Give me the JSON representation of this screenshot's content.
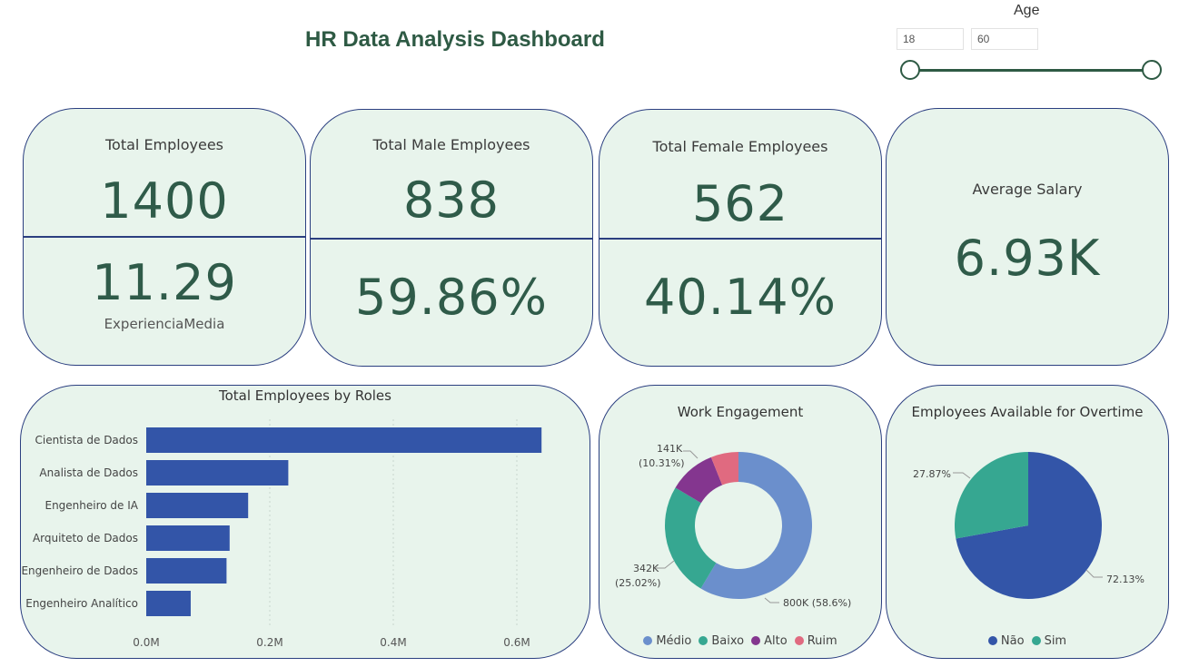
{
  "header": {
    "title": "HR Data Analysis Dashboard"
  },
  "age_filter": {
    "label": "Age",
    "min_value": "18",
    "max_value": "60"
  },
  "cards": {
    "total_employees": {
      "label": "Total Employees",
      "value": "1400",
      "secondary_value": "11.29",
      "secondary_label": "ExperienciaMedia"
    },
    "male": {
      "label": "Total Male Employees",
      "value": "838",
      "secondary_value": "59.86%"
    },
    "female": {
      "label": "Total Female Employees",
      "value": "562",
      "secondary_value": "40.14%"
    },
    "salary": {
      "label": "Average Salary",
      "value": "6.93K"
    }
  },
  "roles_chart": {
    "title": "Total Employees by Roles"
  },
  "engagement_chart": {
    "title": "Work Engagement"
  },
  "overtime_chart": {
    "title": "Employees Available for Overtime"
  },
  "colors": {
    "bar": "#3355a8",
    "medio": "#6b8fcc",
    "baixo": "#36a791",
    "alto": "#84368f",
    "ruim": "#e06a80",
    "nao": "#3355a8",
    "sim": "#36a791"
  },
  "chart_data": [
    {
      "type": "bar",
      "orientation": "horizontal",
      "title": "Total Employees by Roles",
      "categories": [
        "Cientista de Dados",
        "Analista de Dados",
        "Engenheiro de IA",
        "Arquiteto de Dados",
        "Engenheiro de Dados",
        "Engenheiro Analítico"
      ],
      "values": [
        0.64,
        0.23,
        0.165,
        0.135,
        0.13,
        0.072
      ],
      "value_unit": "M",
      "xlim": [
        0,
        0.7
      ],
      "ticks": [
        0,
        0.2,
        0.4,
        0.6
      ],
      "tick_labels": [
        "0.0M",
        "0.2M",
        "0.4M",
        "0.6M"
      ],
      "grid": true
    },
    {
      "type": "pie",
      "variant": "donut",
      "title": "Work Engagement",
      "labels": [
        "Médio",
        "Baixo",
        "Alto",
        "Ruim"
      ],
      "values": [
        800,
        342,
        141,
        83
      ],
      "percents": [
        58.6,
        25.02,
        10.31,
        6.07
      ],
      "data_labels": [
        "800K (58.6%)",
        "342K\n(25.02%)",
        "141K\n(10.31%)",
        ""
      ],
      "legend": "bottom"
    },
    {
      "type": "pie",
      "title": "Employees Available for Overtime",
      "labels": [
        "Não",
        "Sim"
      ],
      "values": [
        72.13,
        27.87
      ],
      "data_labels": [
        "72.13%",
        "27.87%"
      ],
      "legend": "bottom"
    }
  ]
}
